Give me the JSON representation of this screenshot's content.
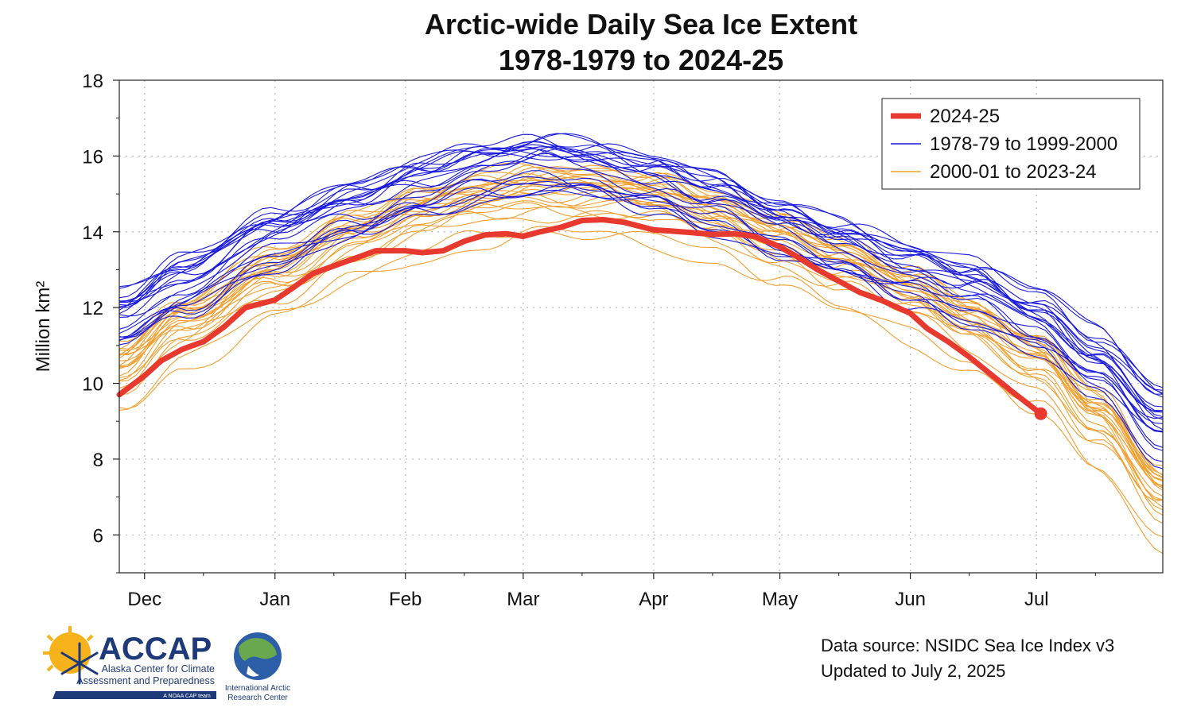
{
  "chart_data": {
    "type": "line",
    "title": [
      "Arctic-wide Daily Sea Ice Extent",
      "1978-1979 to 2024-25"
    ],
    "ylabel": "Million km²",
    "xlabel": "",
    "ylim": [
      5,
      18
    ],
    "yticks": [
      6,
      8,
      10,
      12,
      14,
      16,
      18
    ],
    "xlim": [
      "Nov 25",
      "Jul 31"
    ],
    "x_tick_labels": [
      {
        "label": "Dec",
        "date": "Dec 1"
      },
      {
        "label": "Jan",
        "date": "Jan 1"
      },
      {
        "label": "Feb",
        "date": "Feb 1"
      },
      {
        "label": "Mar",
        "date": "Mar 1"
      },
      {
        "label": "Apr",
        "date": "Apr 1"
      },
      {
        "label": "May",
        "date": "May 1"
      },
      {
        "label": "Jun",
        "date": "Jun 1"
      },
      {
        "label": "Jul",
        "date": "Jul 1"
      }
    ],
    "grid": true,
    "legend_position": "top-right",
    "legend": [
      {
        "label": "2024-25",
        "color": "#e8392f",
        "style": "thick"
      },
      {
        "label": "1978-79 to 1999-2000",
        "color": "#1a1adb",
        "style": "thin"
      },
      {
        "label": "2000-01 to 2023-24",
        "color": "#f0a030",
        "style": "thin"
      }
    ],
    "series_2024_25": {
      "name": "2024-25",
      "color": "#e8392f",
      "x": [
        "Nov 25",
        "Dec 1",
        "Dec 5",
        "Dec 10",
        "Dec 15",
        "Dec 20",
        "Dec 25",
        "Jan 1",
        "Jan 5",
        "Jan 10",
        "Jan 15",
        "Jan 20",
        "Jan 25",
        "Feb 1",
        "Feb 5",
        "Feb 10",
        "Feb 15",
        "Feb 20",
        "Feb 25",
        "Mar 1",
        "Mar 5",
        "Mar 10",
        "Mar 15",
        "Mar 20",
        "Mar 25",
        "Apr 1",
        "Apr 5",
        "Apr 10",
        "Apr 15",
        "Apr 20",
        "Apr 25",
        "May 1",
        "May 5",
        "May 10",
        "May 15",
        "May 20",
        "May 25",
        "Jun 1",
        "Jun 5",
        "Jun 10",
        "Jun 15",
        "Jun 20",
        "Jun 25",
        "Jul 2"
      ],
      "values": [
        9.7,
        10.2,
        10.6,
        10.9,
        11.1,
        11.5,
        12.0,
        12.2,
        12.5,
        12.9,
        13.1,
        13.3,
        13.5,
        13.5,
        13.45,
        13.5,
        13.75,
        13.92,
        13.95,
        13.88,
        14.0,
        14.12,
        14.3,
        14.32,
        14.25,
        14.05,
        14.02,
        13.98,
        13.93,
        13.95,
        13.88,
        13.6,
        13.35,
        13.0,
        12.7,
        12.4,
        12.2,
        11.85,
        11.45,
        11.1,
        10.7,
        10.25,
        9.8,
        9.2
      ],
      "end_marker": {
        "date": "Jul 2",
        "value": 9.2
      }
    },
    "series_1978_1999": {
      "name": "1978-79 to 1999-2000",
      "color": "#1a1adb",
      "count": 22,
      "anchor_x": [
        "Nov 25",
        "Dec 10",
        "Jan 1",
        "Jan 20",
        "Feb 5",
        "Feb 20",
        "Mar 5",
        "Mar 15",
        "Apr 1",
        "Apr 15",
        "May 1",
        "May 15",
        "Jun 1",
        "Jun 15",
        "Jul 1",
        "Jul 15",
        "Jul 31"
      ],
      "mean_values": [
        11.7,
        12.6,
        13.8,
        14.6,
        15.2,
        15.6,
        15.8,
        15.7,
        15.3,
        14.8,
        14.1,
        13.6,
        12.9,
        12.4,
        11.6,
        10.5,
        8.9
      ],
      "spread": 0.35
    },
    "series_2000_2023": {
      "name": "2000-01 to 2023-24",
      "color": "#f0a030",
      "count": 24,
      "anchor_x": [
        "Nov 25",
        "Dec 10",
        "Jan 1",
        "Jan 20",
        "Feb 5",
        "Feb 20",
        "Mar 5",
        "Mar 15",
        "Apr 1",
        "Apr 15",
        "May 1",
        "May 15",
        "Jun 1",
        "Jun 15",
        "Jul 1",
        "Jul 15",
        "Jul 31"
      ],
      "mean_values": [
        10.1,
        11.3,
        12.6,
        13.6,
        14.2,
        14.6,
        14.8,
        14.8,
        14.6,
        14.1,
        13.5,
        12.9,
        12.1,
        11.3,
        10.4,
        8.9,
        6.8
      ],
      "spread": 0.4
    }
  },
  "footer": {
    "source_line1": "Data source: NSIDC Sea Ice Index v3",
    "source_line2": "Updated to July 2, 2025"
  },
  "logos": {
    "accap_name": "ACCAP",
    "accap_line1": "Alaska Center for Climate",
    "accap_line2": "Assessment and Preparedness",
    "accap_tag": "A NOAA CAP team",
    "iarc_line1": "International Arctic",
    "iarc_line2": "Research Center"
  },
  "colors": {
    "red": "#e8392f",
    "blue": "#1a1adb",
    "orange": "#f0a030",
    "accap_navy": "#1f3a78"
  }
}
